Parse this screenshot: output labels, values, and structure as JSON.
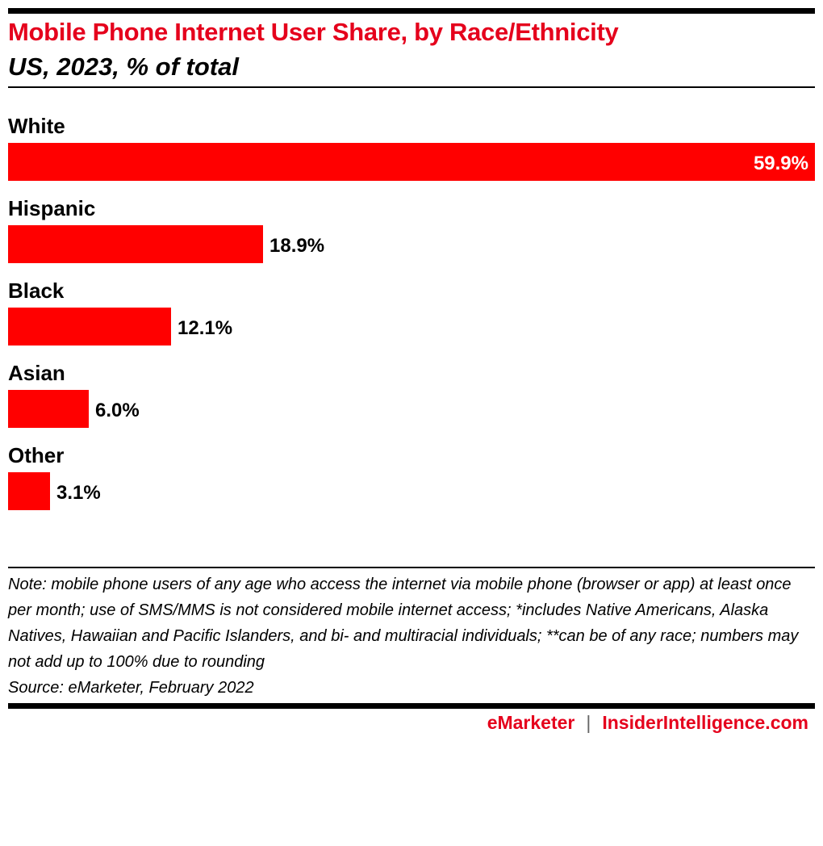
{
  "header": {
    "title": "Mobile Phone Internet User Share, by Race/Ethnicity",
    "subtitle": "US, 2023, % of total"
  },
  "chart_data": {
    "type": "bar",
    "orientation": "horizontal",
    "categories": [
      "White",
      "Hispanic",
      "Black",
      "Asian",
      "Other"
    ],
    "values": [
      59.9,
      18.9,
      12.1,
      6.0,
      3.1
    ],
    "value_labels": [
      "59.9%",
      "18.9%",
      "12.1%",
      "6.0%",
      "3.1%"
    ],
    "unit": "%",
    "xlim": [
      0,
      59.9
    ],
    "grid": false,
    "legend": "none",
    "bar_color": "#ff0000"
  },
  "notes": {
    "note": "Note: mobile phone users of any age who access the internet via mobile phone (browser or app) at least once per month; use of SMS/MMS is not considered mobile internet access; *includes Native Americans, Alaska Natives, Hawaiian and Pacific Islanders, and bi- and multiracial individuals; **can be of any race; numbers may not add up to 100% due to rounding",
    "source": "Source: eMarketer, February 2022"
  },
  "footer": {
    "brand_primary": "eMarketer",
    "separator": "|",
    "brand_secondary": "InsiderIntelligence.com"
  },
  "colors": {
    "accent": "#e5001c",
    "bar": "#ff0000",
    "text": "#000000"
  }
}
